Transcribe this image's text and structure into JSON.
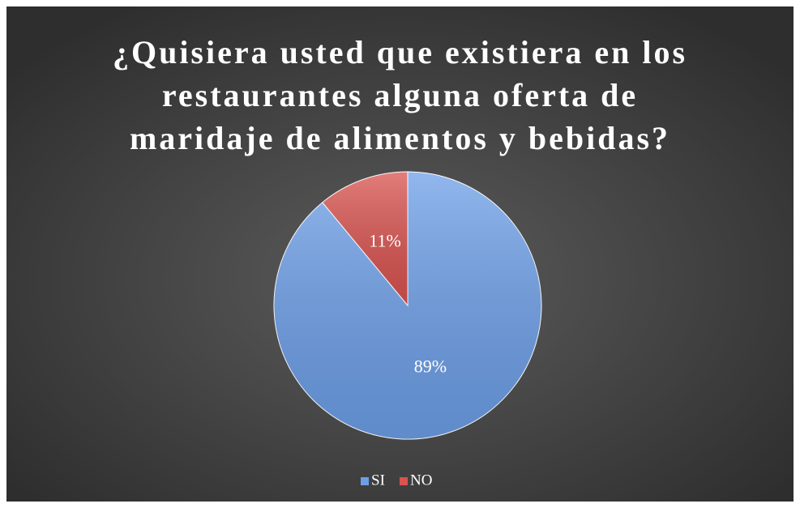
{
  "chart_data": {
    "type": "pie",
    "title": "¿Quisiera usted que existiera en los restaurantes alguna oferta de maridaje de alimentos y bebidas?",
    "categories": [
      "SI",
      "NO"
    ],
    "values": [
      89,
      11
    ],
    "value_labels": [
      "89%",
      "11%"
    ],
    "colors": [
      "#6d9fe8",
      "#d9534f"
    ],
    "legend": "bottom"
  }
}
